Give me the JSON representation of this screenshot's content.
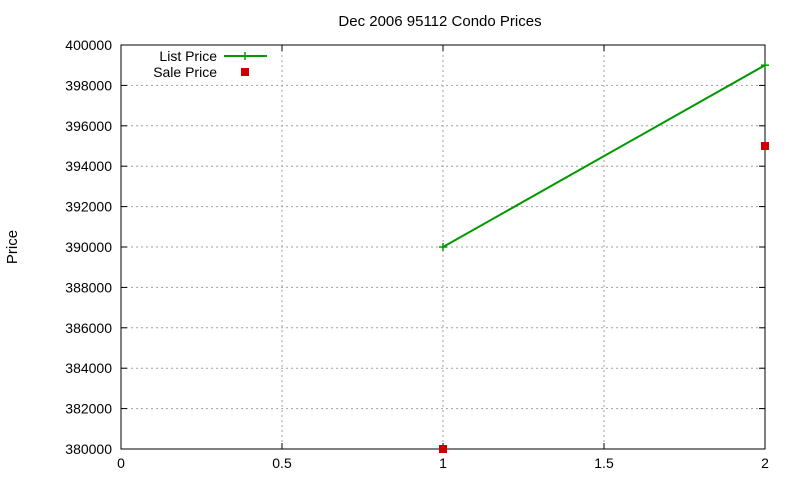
{
  "chart_data": {
    "type": "line",
    "title": "Dec 2006 95112 Condo Prices",
    "xlabel": "",
    "ylabel": "Price",
    "xlim": [
      0,
      2
    ],
    "ylim": [
      380000,
      400000
    ],
    "x_ticks": [
      0,
      0.5,
      1,
      1.5,
      2
    ],
    "x_tick_labels": [
      "0",
      "0.5",
      "1",
      "1.5",
      "2"
    ],
    "y_ticks": [
      380000,
      382000,
      384000,
      386000,
      388000,
      390000,
      392000,
      394000,
      396000,
      398000,
      400000
    ],
    "y_tick_labels": [
      "380000",
      "382000",
      "384000",
      "386000",
      "388000",
      "390000",
      "392000",
      "394000",
      "396000",
      "398000",
      "400000"
    ],
    "grid": true,
    "legend_position": "top-left",
    "series": [
      {
        "name": "List Price",
        "style": "linespoints",
        "marker": "plus",
        "color": "#009900",
        "points": [
          {
            "x": 1,
            "y": 390000
          },
          {
            "x": 2,
            "y": 399000
          }
        ]
      },
      {
        "name": "Sale Price",
        "style": "points",
        "marker": "square",
        "color": "#cc0000",
        "points": [
          {
            "x": 1,
            "y": 380000
          },
          {
            "x": 2,
            "y": 395000
          }
        ]
      }
    ]
  }
}
